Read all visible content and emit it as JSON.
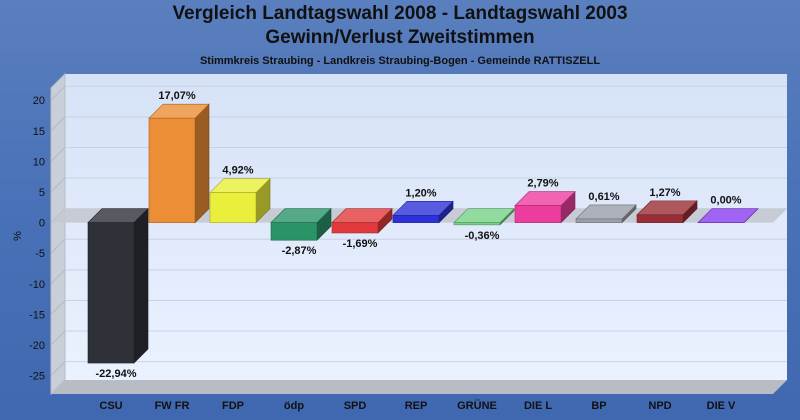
{
  "chart_data": {
    "type": "bar",
    "title": "Vergleich Landtagswahl 2008 - Landtagswahl 2003",
    "subtitle": "Gewinn/Verlust Zweitstimmen",
    "caption": "Stimmkreis Straubing - Landkreis Straubing-Bogen - Gemeinde RATTISZELL",
    "ylabel": "%",
    "xlabel": "",
    "ylim": [
      -28,
      22
    ],
    "yticks": [
      20,
      15,
      10,
      5,
      0,
      -5,
      -10,
      -15,
      -20,
      -25
    ],
    "grid": true,
    "categories": [
      "CSU",
      "FW FR",
      "FDP",
      "ödp",
      "SPD",
      "REP",
      "GRÜNE",
      "DIE L",
      "BP",
      "NPD",
      "DIE V"
    ],
    "values": [
      -22.94,
      17.07,
      4.92,
      -2.87,
      -1.69,
      1.2,
      -0.36,
      2.79,
      0.61,
      1.27,
      0.0
    ],
    "value_labels": [
      "-22,94%",
      "17,07%",
      "4,92%",
      "-2,87%",
      "-1,69%",
      "1,20%",
      "-0,36%",
      "2,79%",
      "0,61%",
      "1,27%",
      "0,00%"
    ],
    "colors": [
      "#2f3139",
      "#ec8e36",
      "#e9ef3a",
      "#2a9468",
      "#e23a3c",
      "#2d32d8",
      "#74d284",
      "#ec3d9e",
      "#9a9ea8",
      "#9a2e36",
      "#8a3cf0"
    ]
  }
}
